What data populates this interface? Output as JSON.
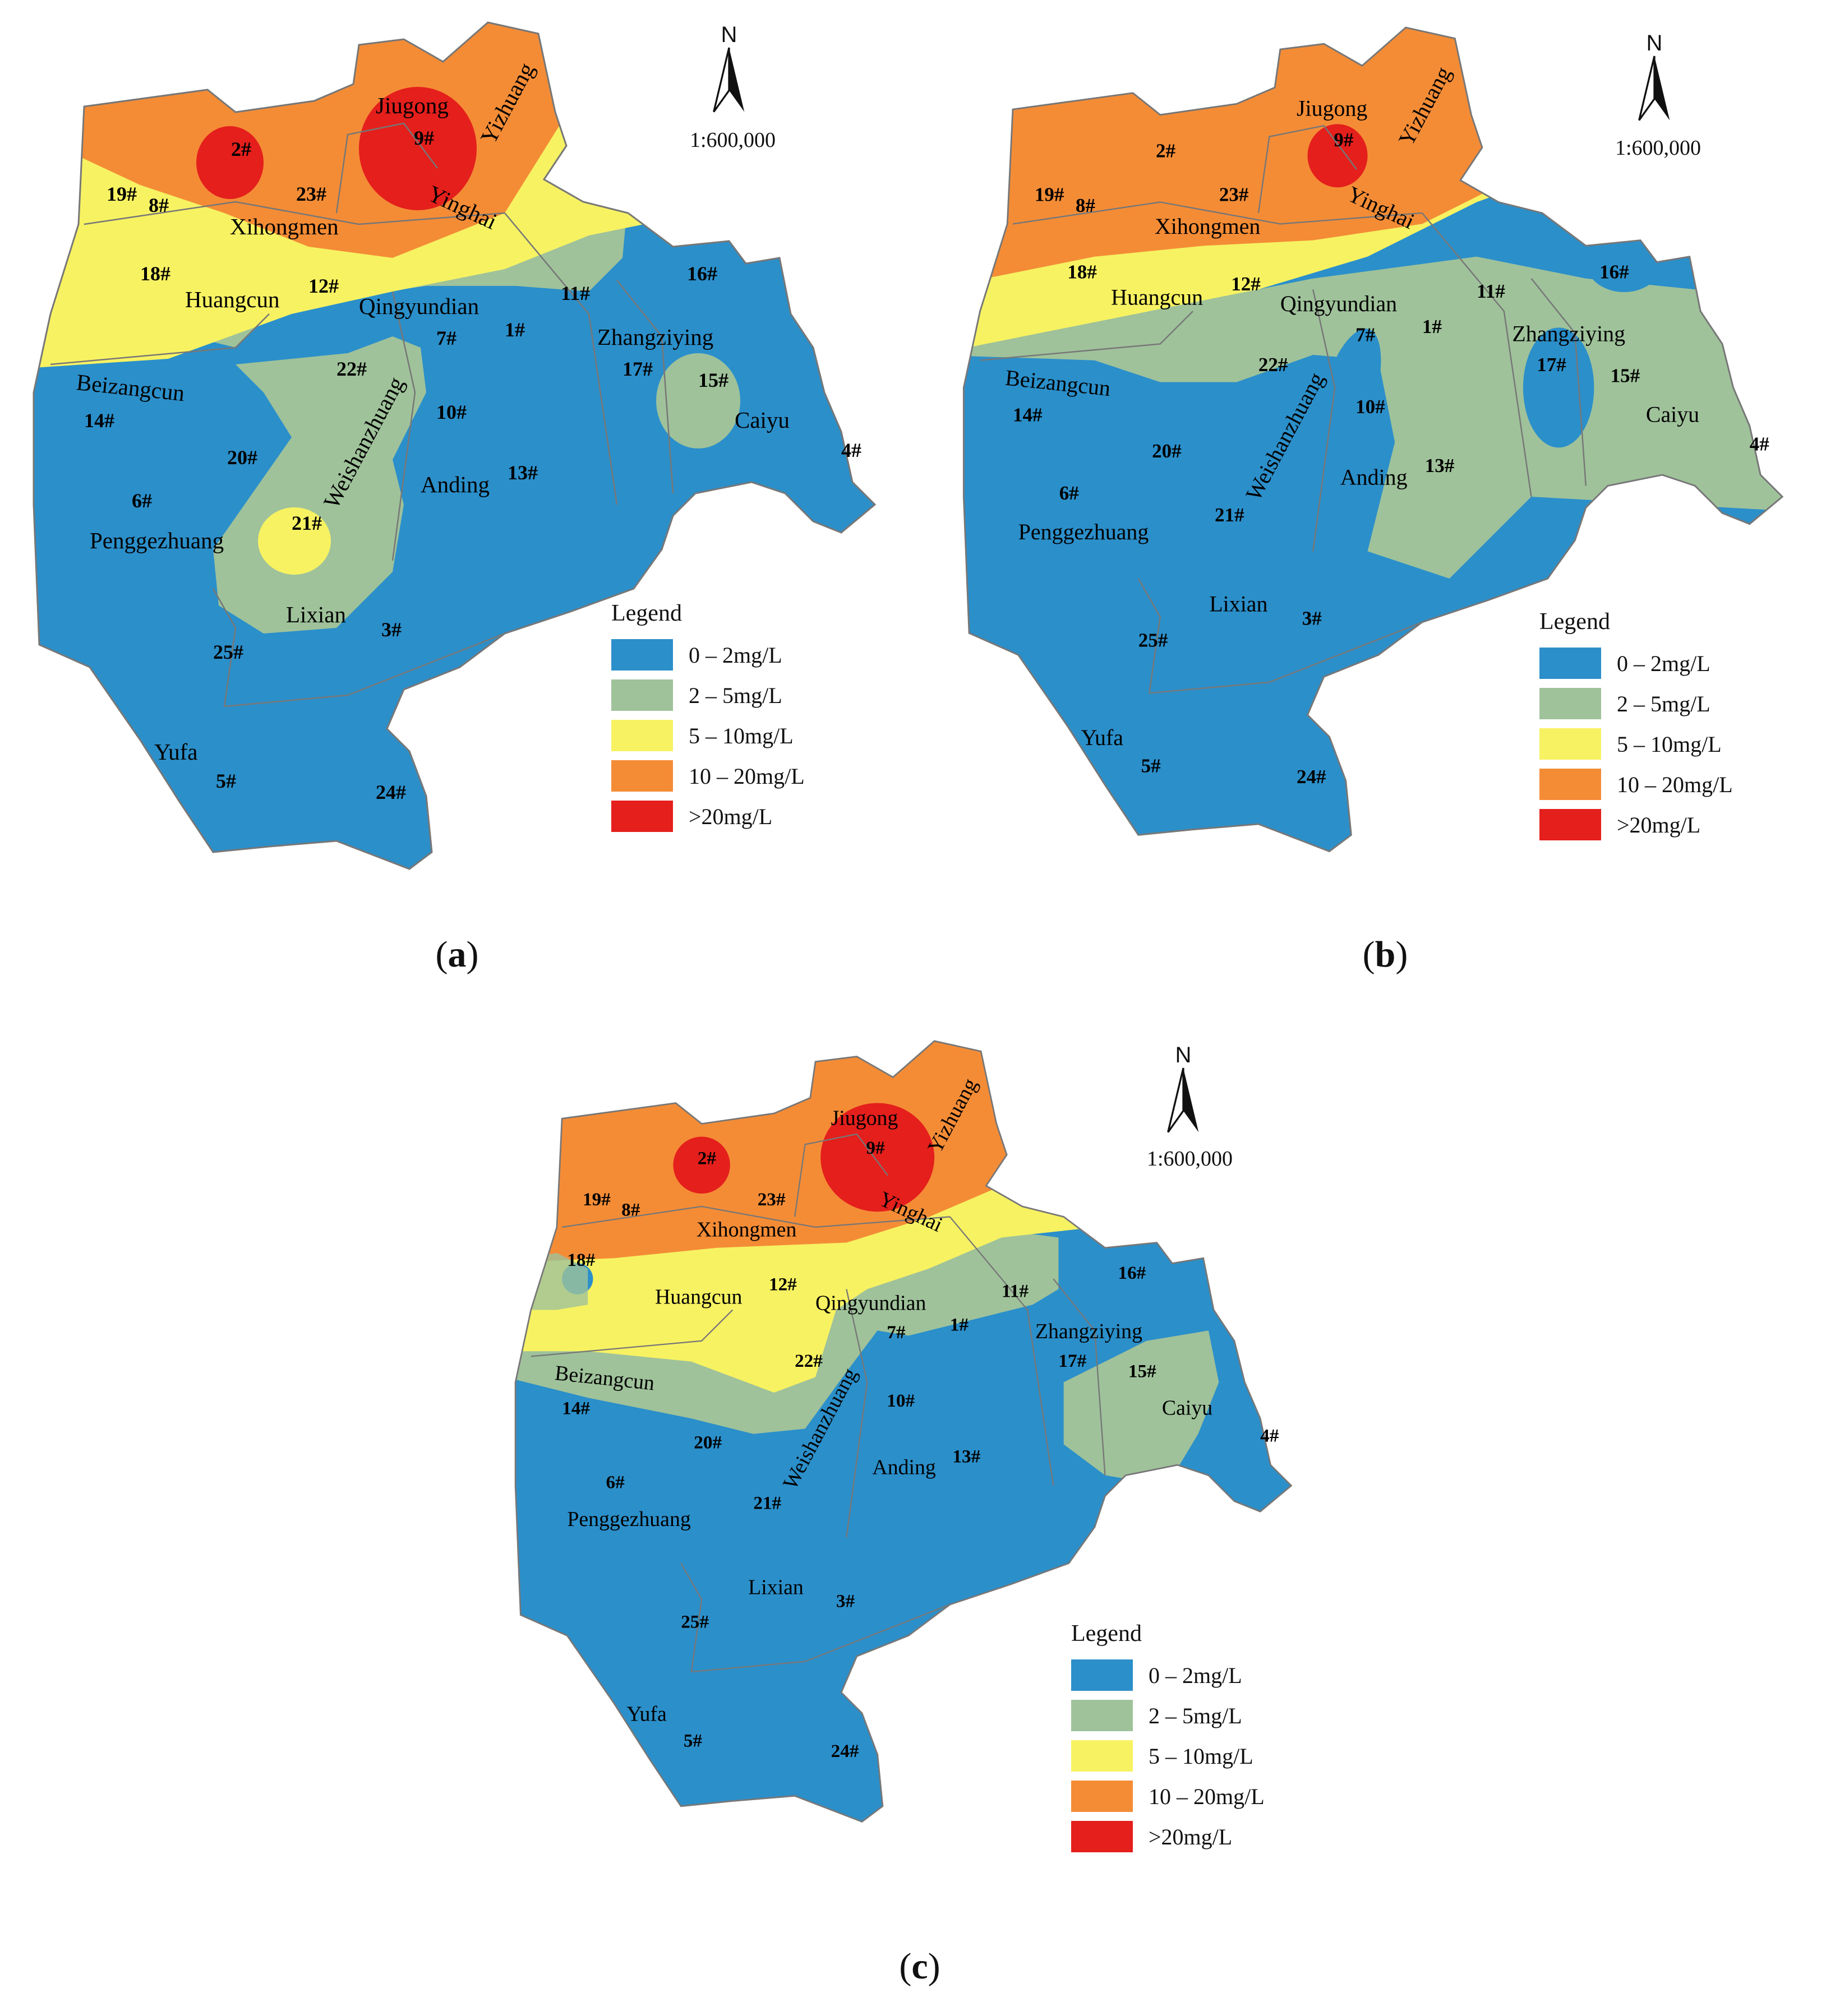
{
  "colors": {
    "class_0_2": "#2b8fca",
    "class_2_5": "#9fc29a",
    "class_5_10": "#f7f262",
    "class_10_20": "#f48c36",
    "class_20_plus": "#e41f1c",
    "boundary": "#777777"
  },
  "north_arrow": {
    "label": "N",
    "icon": "north-arrow-icon"
  },
  "scale": "1:600,000",
  "legend": {
    "title": "Legend",
    "items": [
      {
        "label": "0 – 2mg/L",
        "color": "#2b8fca"
      },
      {
        "label": "2 – 5mg/L",
        "color": "#9fc29a"
      },
      {
        "label": "5 – 10mg/L",
        "color": "#f7f262"
      },
      {
        "label": "10 – 20mg/L",
        "color": "#f48c36"
      },
      {
        "label": ">20mg/L",
        "color": "#e41f1c"
      }
    ]
  },
  "places": [
    "Jiugong",
    "Yizhuang",
    "Yinghai",
    "Xihongmen",
    "Huangcun",
    "Qingyundian",
    "Zhangziying",
    "Beizangcun",
    "Weishanzhuang",
    "Caiyu",
    "Anding",
    "Penggezhuang",
    "Lixian",
    "Yufa"
  ],
  "sites": [
    "1#",
    "2#",
    "3#",
    "4#",
    "5#",
    "6#",
    "7#",
    "8#",
    "9#",
    "10#",
    "11#",
    "12#",
    "13#",
    "14#",
    "15#",
    "16#",
    "17#",
    "18#",
    "19#",
    "20#",
    "21#",
    "22#",
    "23#",
    "24#",
    "25#"
  ],
  "panels": [
    {
      "id": "a",
      "caption_letter": "a"
    },
    {
      "id": "b",
      "caption_letter": "b"
    },
    {
      "id": "c",
      "caption_letter": "c"
    }
  ]
}
